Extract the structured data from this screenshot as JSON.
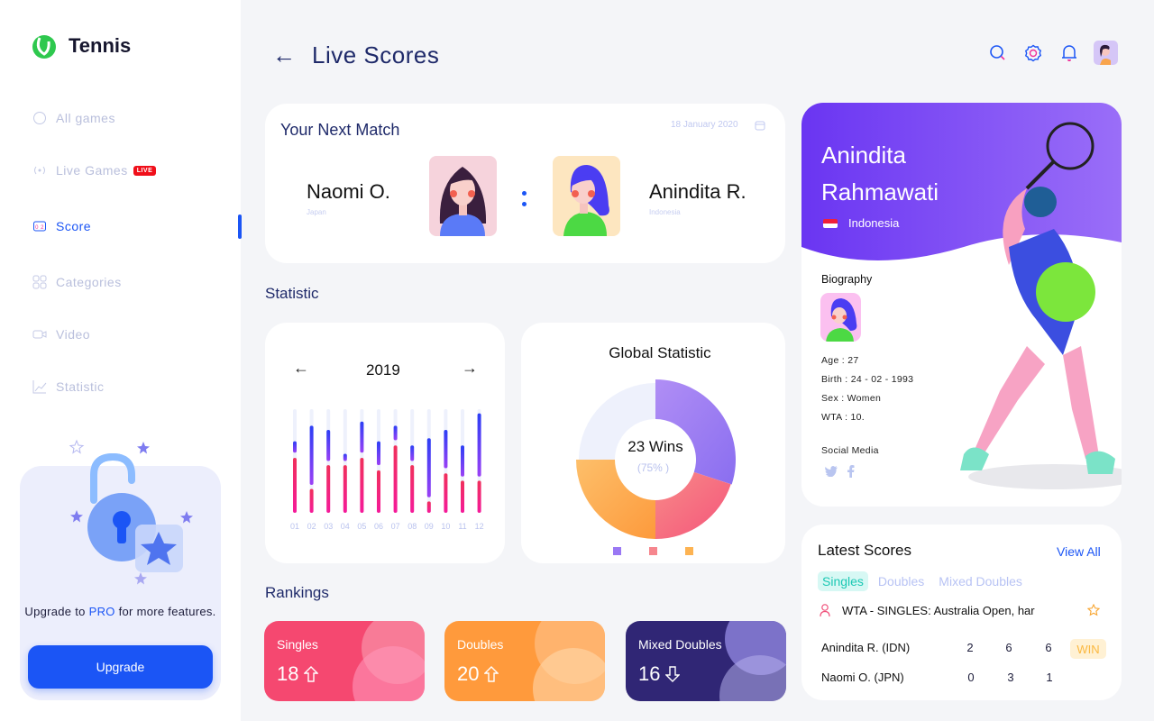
{
  "app": {
    "name": "Tennis"
  },
  "sidebar": {
    "items": [
      {
        "label": "All games",
        "icon": "ball-icon"
      },
      {
        "label": "Live Games",
        "icon": "broadcast-icon",
        "badge": "LIVE"
      },
      {
        "label": "Score",
        "icon": "scoreboard-icon",
        "active": true
      },
      {
        "label": "Categories",
        "icon": "grid-icon"
      },
      {
        "label": "Video",
        "icon": "video-icon"
      },
      {
        "label": "Statistic",
        "icon": "chart-icon"
      }
    ],
    "upgrade": {
      "text_before": "Upgrade to ",
      "pro": "PRO",
      "text_after": " for more features.",
      "button": "Upgrade"
    }
  },
  "header": {
    "title": "Live Scores",
    "back_icon": "arrow-left-icon",
    "icons": [
      "search-icon",
      "gear-icon",
      "bell-icon",
      "avatar"
    ]
  },
  "next_match": {
    "title": "Your Next Match",
    "date": "18 January 2020",
    "player1": {
      "name": "Naomi O.",
      "country": "Japan"
    },
    "player2": {
      "name": "Anindita R.",
      "country": "Indonesia"
    },
    "separator": ":"
  },
  "statistic": {
    "title": "Statistic",
    "year": "2019"
  },
  "chart_data": [
    {
      "type": "bar",
      "title": "2019",
      "categories": [
        "01",
        "02",
        "03",
        "04",
        "05",
        "06",
        "07",
        "08",
        "09",
        "10",
        "11",
        "12"
      ],
      "series": [
        {
          "name": "lower (pink)",
          "values": [
            53,
            23,
            46,
            46,
            53,
            41,
            65,
            46,
            11,
            38,
            31,
            31
          ]
        },
        {
          "name": "upper start (blue)",
          "values": [
            58,
            27,
            50,
            50,
            58,
            46,
            70,
            50,
            15,
            43,
            35,
            35
          ]
        },
        {
          "name": "upper end (blue)",
          "values": [
            69,
            84,
            80,
            57,
            88,
            69,
            84,
            65,
            72,
            80,
            65,
            96
          ]
        }
      ],
      "ylim": [
        0,
        100
      ]
    },
    {
      "type": "pie",
      "title": "Global Statistic",
      "center_label": "23 Wins",
      "center_sub": "(75% )",
      "slices": [
        {
          "value": 30,
          "color": "#9a78f4"
        },
        {
          "value": 20,
          "color": "#f46a82"
        },
        {
          "value": 25,
          "color": "#fdaa4a"
        },
        {
          "value": 25,
          "color": "#eef1fc"
        }
      ]
    }
  ],
  "rankings": {
    "title": "Rankings",
    "items": [
      {
        "label": "Singles",
        "value": "18",
        "trend": "up",
        "color": "#f54870"
      },
      {
        "label": "Doubles",
        "value": "20",
        "trend": "up",
        "color": "#ff9a3c"
      },
      {
        "label": "Mixed Doubles",
        "value": "16",
        "trend": "down",
        "color": "#302675"
      }
    ]
  },
  "profile": {
    "first": "Anindita",
    "last": "Rahmawati",
    "country": "Indonesia",
    "bio_title": "Biography",
    "age": "Age : 27",
    "birth": "Birth : 24 - 02 - 1993",
    "sex": "Sex : Women",
    "wta": "WTA : 10.",
    "social": "Social Media"
  },
  "latest": {
    "title": "Latest Scores",
    "view_all": "View All",
    "tabs": [
      "Singles",
      "Doubles",
      "Mixed Doubles"
    ],
    "event": "WTA - SINGLES: Australia Open, har",
    "rows": [
      {
        "name": "Anindita R. (IDN)",
        "s": [
          "2",
          "6",
          "6"
        ],
        "badge": "WIN"
      },
      {
        "name": "Naomi O. (JPN)",
        "s": [
          "0",
          "3",
          "1"
        ]
      }
    ]
  }
}
